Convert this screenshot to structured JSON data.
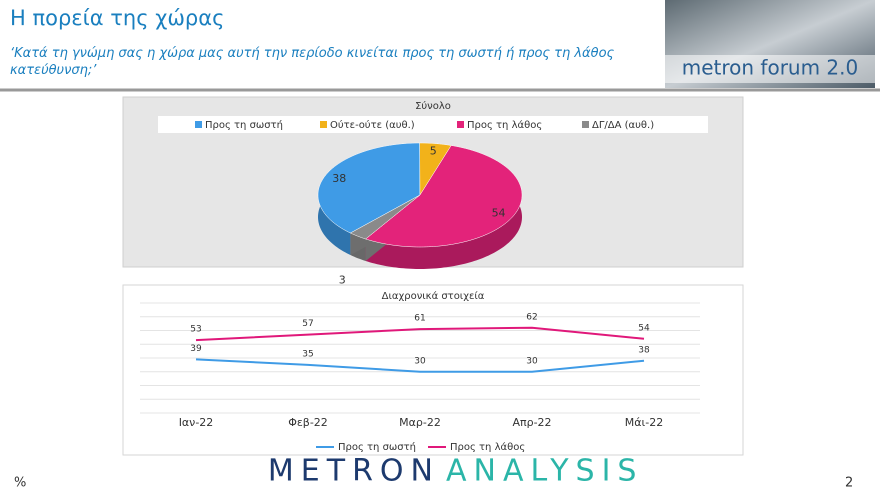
{
  "header": {
    "title": "Η πορεία της χώρας",
    "subtitle": "‘Κατά τη γνώμη σας η χώρα μας αυτή την περίοδο κινείται προς τη σωστή ή προς τη λάθος κατεύθυνση;’",
    "logo": "metron forum 2.0"
  },
  "chart_data": [
    {
      "type": "pie",
      "title": "Σύνολο",
      "categories": [
        "Προς τη σωστή",
        "Ούτε-ούτε (αυθ.)",
        "Προς τη λάθος",
        "ΔΓ/ΔΑ (αυθ.)"
      ],
      "values": [
        38,
        5,
        54,
        3
      ],
      "colors": [
        "#3f9be6",
        "#f2b21a",
        "#e3237a",
        "#8a8a8a"
      ]
    },
    {
      "type": "line",
      "title": "Διαχρονικά στοιχεία",
      "categories": [
        "Ιαν-22",
        "Φεβ-22",
        "Μαρ-22",
        "Απρ-22",
        "Μάι-22"
      ],
      "series": [
        {
          "name": "Προς τη σωστή",
          "color": "#3f9be6",
          "values": [
            39,
            35,
            30,
            30,
            38
          ]
        },
        {
          "name": "Προς τη λάθος",
          "color": "#e0187a",
          "values": [
            53,
            57,
            61,
            62,
            54
          ]
        }
      ],
      "ylim": [
        0,
        80
      ],
      "yticks": [
        0,
        10,
        20,
        30,
        40,
        50,
        60,
        70,
        80
      ],
      "grid": true,
      "show_ytick_labels": false
    }
  ],
  "footer": {
    "unit": "%",
    "brand_1": "METRON",
    "brand_2": "ANALYSIS",
    "page": "2"
  }
}
